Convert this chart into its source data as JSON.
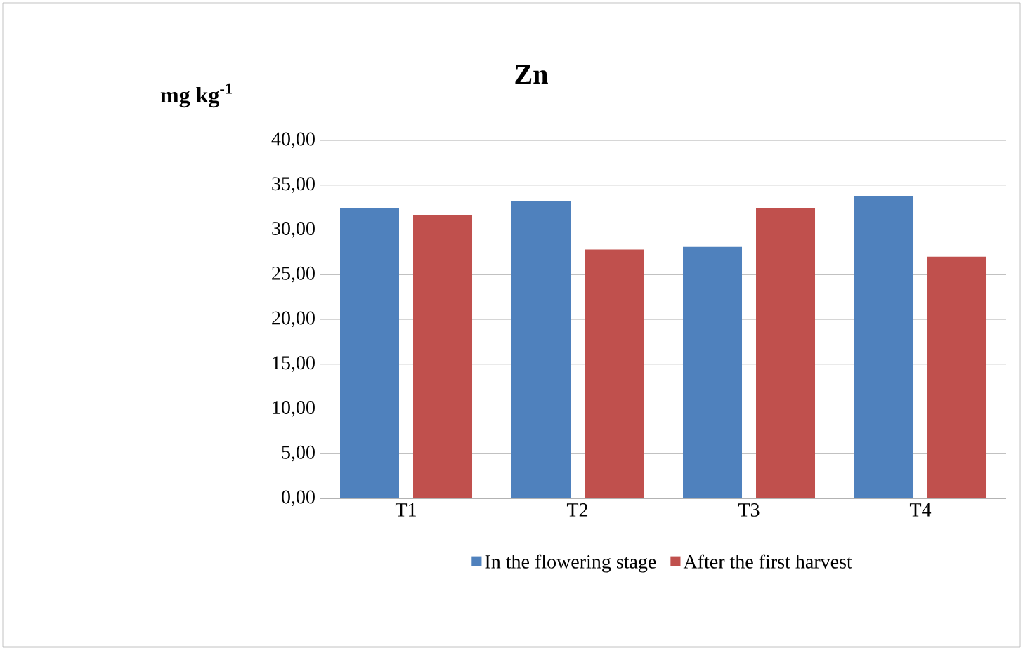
{
  "chart_data": {
    "type": "bar",
    "title": "Zn",
    "ylabel": "mg kg$^{-1}$",
    "categories": [
      "T1",
      "T2",
      "T3",
      "T4"
    ],
    "series": [
      {
        "name": "In the flowering stage",
        "color": "#4f81bd",
        "values": [
          32.4,
          33.2,
          28.1,
          33.8
        ]
      },
      {
        "name": "After the first harvest",
        "color": "#c0504d",
        "values": [
          31.6,
          27.8,
          32.4,
          27.0
        ]
      }
    ],
    "ylim": [
      0,
      40
    ],
    "yticks": [
      {
        "value": 0,
        "label": "0,00"
      },
      {
        "value": 5,
        "label": "5,00"
      },
      {
        "value": 10,
        "label": "10,00"
      },
      {
        "value": 15,
        "label": "15,00"
      },
      {
        "value": 20,
        "label": "20,00"
      },
      {
        "value": 25,
        "label": "25,00"
      },
      {
        "value": 30,
        "label": "30,00"
      },
      {
        "value": 35,
        "label": "35,00"
      },
      {
        "value": 40,
        "label": "40,00"
      }
    ],
    "grid": "y",
    "legend": "bottom"
  }
}
